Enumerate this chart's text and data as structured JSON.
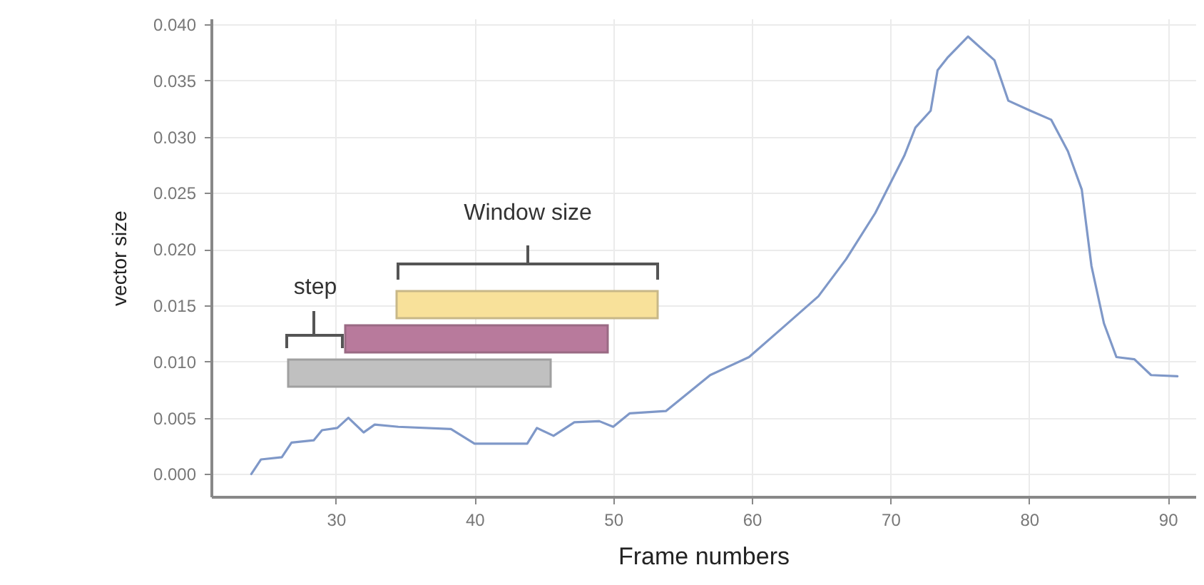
{
  "chart_data": {
    "type": "line",
    "xlabel": "Frame numbers",
    "ylabel": "vector size",
    "annotations": [
      "Window size",
      "step"
    ],
    "xlim": [
      21,
      92
    ],
    "xticks": [
      30,
      40,
      50,
      60,
      70,
      80,
      90
    ],
    "ylim": [
      -0.002,
      0.0405
    ],
    "yticks": [
      {
        "value": 0,
        "label": "0.000"
      },
      {
        "value": 0.005,
        "label": "0.005"
      },
      {
        "value": 0.01,
        "label": "0.010"
      },
      {
        "value": 0.015,
        "label": "0.015"
      },
      {
        "value": 0.02,
        "label": "0.020"
      },
      {
        "value": 0.025,
        "label": "0.025"
      },
      {
        "value": 0.03,
        "label": "0.030"
      },
      {
        "value": 0.035,
        "label": "0.035"
      },
      {
        "value": 0.04,
        "label": "0.040"
      }
    ],
    "grid": true,
    "series": [
      {
        "color": "#7f98c8",
        "x": [
          23.9,
          24.6,
          26.1,
          26.8,
          28.4,
          29.0,
          30.1,
          30.9,
          32.0,
          32.8,
          34.5,
          38.3,
          40.0,
          43.8,
          44.5,
          45.7,
          47.2,
          49.0,
          50.0,
          51.2,
          53.8,
          54.8,
          57.0,
          59.8,
          62.4,
          64.8,
          66.8,
          68.9,
          69.6,
          71.0,
          71.8,
          72.9,
          73.4,
          74.1,
          75.6,
          77.5,
          78.5,
          80.1,
          81.6,
          82.8,
          83.8,
          84.5,
          85.4,
          86.3,
          87.6,
          88.8,
          90.7
        ],
        "values": [
          0.0,
          0.0013,
          0.0015,
          0.0028,
          0.003,
          0.0039,
          0.0041,
          0.005,
          0.0037,
          0.0044,
          0.0042,
          0.004,
          0.0027,
          0.0027,
          0.0041,
          0.0034,
          0.0046,
          0.0047,
          0.0042,
          0.0054,
          0.0056,
          0.0066,
          0.0088,
          0.0104,
          0.0132,
          0.0158,
          0.0191,
          0.0232,
          0.0249,
          0.0283,
          0.0308,
          0.0323,
          0.0359,
          0.037,
          0.0389,
          0.0368,
          0.0332,
          0.0323,
          0.0315,
          0.0287,
          0.0253,
          0.0185,
          0.0134,
          0.0104,
          0.0102,
          0.0088,
          0.0087
        ]
      }
    ]
  }
}
